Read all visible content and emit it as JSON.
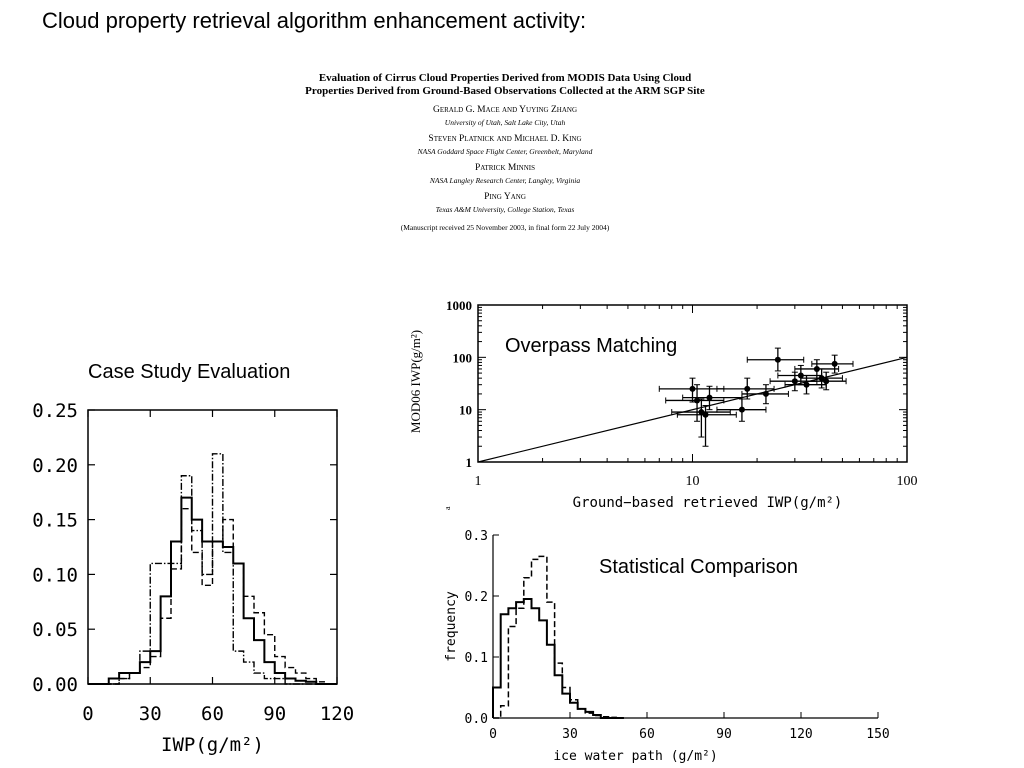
{
  "slide": {
    "title": "Cloud property retrieval algorithm enhancement activity:",
    "captions": {
      "case_study": "Case Study Evaluation",
      "overpass": "Overpass Matching",
      "statistical": "Statistical Comparison"
    }
  },
  "paper": {
    "title_line1": "Evaluation of Cirrus Cloud Properties Derived from MODIS Data Using Cloud",
    "title_line2": "Properties Derived from Ground-Based Observations Collected at the ARM SGP Site",
    "author_blocks": [
      {
        "authors": "Gerald G. Mace and Yuying Zhang",
        "affiliation": "University of Utah, Salt Lake City, Utah"
      },
      {
        "authors": "Steven Platnick and Michael D. King",
        "affiliation": "NASA Goddard Space Flight Center, Greenbelt, Maryland"
      },
      {
        "authors": "Patrick Minnis",
        "affiliation": "NASA Langley Research Center, Langley, Virginia"
      },
      {
        "authors": "Ping Yang",
        "affiliation": "Texas A&M University, College Station, Texas"
      }
    ],
    "manuscript": "(Manuscript received 25 November 2003, in final form 22 July 2004)"
  },
  "chart_data": [
    {
      "id": "case-study-histogram",
      "type": "line",
      "step": true,
      "xlabel": "IWP(g/m²)",
      "ylabel": "",
      "xlim": [
        0,
        120
      ],
      "ylim": [
        0,
        0.25
      ],
      "xticks": [
        0,
        30,
        60,
        90,
        120
      ],
      "xtick_labels": [
        "0",
        "30",
        "60",
        "90",
        "120"
      ],
      "yticks": [
        0,
        0.05,
        0.1,
        0.15,
        0.2,
        0.25
      ],
      "ytick_labels": [
        "0.00",
        "0.05",
        "0.10",
        "0.15",
        "0.20",
        "0.25"
      ],
      "bin_edges": [
        0,
        5,
        10,
        15,
        20,
        25,
        30,
        35,
        40,
        45,
        50,
        55,
        60,
        65,
        70,
        75,
        80,
        85,
        90,
        95,
        100,
        105,
        110,
        115,
        120
      ],
      "series": [
        {
          "style": "solid",
          "values": [
            0.0,
            0.0,
            0.005,
            0.01,
            0.01,
            0.02,
            0.03,
            0.08,
            0.13,
            0.17,
            0.15,
            0.13,
            0.13,
            0.125,
            0.11,
            0.06,
            0.04,
            0.02,
            0.01,
            0.005,
            0.003,
            0.002,
            0.0,
            0.0
          ]
        },
        {
          "style": "dash",
          "values": [
            0.0,
            0.0,
            0.0,
            0.005,
            0.01,
            0.015,
            0.025,
            0.06,
            0.105,
            0.16,
            0.12,
            0.09,
            0.13,
            0.15,
            0.11,
            0.08,
            0.065,
            0.045,
            0.025,
            0.015,
            0.01,
            0.005,
            0.002,
            0.0
          ]
        },
        {
          "style": "dashdot",
          "values": [
            0.0,
            0.0,
            0.0,
            0.005,
            0.01,
            0.03,
            0.11,
            0.11,
            0.11,
            0.19,
            0.14,
            0.1,
            0.21,
            0.12,
            0.03,
            0.02,
            0.01,
            0.005,
            0.005,
            0.0,
            0.0,
            0.0,
            0.0,
            0.0
          ]
        }
      ]
    },
    {
      "id": "overpass-scatter",
      "type": "scatter",
      "xscale": "log",
      "yscale": "log",
      "xlabel": "Ground−based retrieved IWP(g/m²)",
      "ylabel": "MOD06 IWP(g/m²)",
      "xlim": [
        1,
        100
      ],
      "ylim": [
        1,
        1000
      ],
      "xticks": [
        1,
        10,
        100
      ],
      "xtick_labels": [
        "1",
        "10",
        "100"
      ],
      "yticks": [
        1,
        10,
        100,
        1000
      ],
      "ytick_labels": [
        "1",
        "10",
        "100",
        "1000"
      ],
      "reference_line": {
        "x": [
          1,
          100
        ],
        "y": [
          1,
          100
        ]
      },
      "points": [
        {
          "x": 10,
          "y": 25,
          "xerr": [
            7,
            14
          ],
          "yerr": [
            14,
            40
          ]
        },
        {
          "x": 10.5,
          "y": 15,
          "xerr": [
            7.5,
            14
          ],
          "yerr": [
            6,
            30
          ]
        },
        {
          "x": 11,
          "y": 9,
          "xerr": [
            8,
            15
          ],
          "yerr": [
            3,
            16
          ]
        },
        {
          "x": 11.5,
          "y": 8,
          "xerr": [
            8.5,
            16
          ],
          "yerr": [
            2,
            12
          ]
        },
        {
          "x": 12,
          "y": 17,
          "xerr": [
            9,
            17
          ],
          "yerr": [
            10,
            28
          ]
        },
        {
          "x": 17,
          "y": 10,
          "xerr": [
            13,
            22
          ],
          "yerr": [
            6,
            16
          ]
        },
        {
          "x": 18,
          "y": 25,
          "xerr": [
            13,
            24
          ],
          "yerr": [
            16,
            40
          ]
        },
        {
          "x": 22,
          "y": 20,
          "xerr": [
            17,
            28
          ],
          "yerr": [
            13,
            30
          ]
        },
        {
          "x": 25,
          "y": 90,
          "xerr": [
            18,
            33
          ],
          "yerr": [
            55,
            150
          ]
        },
        {
          "x": 30,
          "y": 35,
          "xerr": [
            23,
            38
          ],
          "yerr": [
            23,
            52
          ]
        },
        {
          "x": 32,
          "y": 45,
          "xerr": [
            25,
            40
          ],
          "yerr": [
            30,
            70
          ]
        },
        {
          "x": 34,
          "y": 30,
          "xerr": [
            27,
            42
          ],
          "yerr": [
            20,
            45
          ]
        },
        {
          "x": 38,
          "y": 60,
          "xerr": [
            30,
            48
          ],
          "yerr": [
            40,
            90
          ]
        },
        {
          "x": 40,
          "y": 40,
          "xerr": [
            32,
            50
          ],
          "yerr": [
            26,
            60
          ]
        },
        {
          "x": 42,
          "y": 35,
          "xerr": [
            34,
            52
          ],
          "yerr": [
            24,
            52
          ]
        },
        {
          "x": 46,
          "y": 75,
          "xerr": [
            36,
            56
          ],
          "yerr": [
            50,
            110
          ]
        }
      ],
      "stray_label": "a"
    },
    {
      "id": "statistical-histogram",
      "type": "line",
      "step": true,
      "xlabel": "ice water path (g/m²)",
      "ylabel": "frequency",
      "xlim": [
        0,
        150
      ],
      "ylim": [
        0,
        0.3
      ],
      "xticks": [
        0,
        30,
        60,
        90,
        120,
        150
      ],
      "xtick_labels": [
        "0",
        "30",
        "60",
        "90",
        "120",
        "150"
      ],
      "yticks": [
        0,
        0.1,
        0.2,
        0.3
      ],
      "ytick_labels": [
        "0.0",
        "0.1",
        "0.2",
        "0.3"
      ],
      "bin_edges": [
        0,
        3,
        6,
        9,
        12,
        15,
        18,
        21,
        24,
        27,
        30,
        33,
        36,
        39,
        42,
        45,
        48,
        51
      ],
      "series": [
        {
          "style": "solid",
          "values": [
            0.05,
            0.17,
            0.18,
            0.19,
            0.195,
            0.18,
            0.16,
            0.12,
            0.07,
            0.04,
            0.025,
            0.015,
            0.01,
            0.005,
            0.0,
            0.0,
            0.0
          ]
        },
        {
          "style": "dash",
          "values": [
            0.0,
            0.02,
            0.15,
            0.18,
            0.23,
            0.26,
            0.265,
            0.19,
            0.09,
            0.05,
            0.03,
            0.015,
            0.008,
            0.004,
            0.002,
            0.001,
            0.0
          ]
        }
      ]
    }
  ]
}
